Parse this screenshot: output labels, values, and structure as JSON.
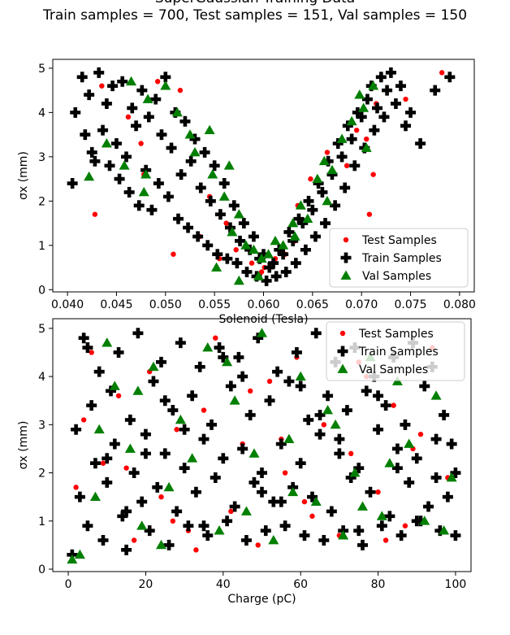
{
  "figure": {
    "title_line1": "SuperGaussian Training Data",
    "title_line2": "Train samples = 700, Test samples = 151, Val samples = 150"
  },
  "legend_entries": [
    "Test Samples",
    "Train Samples",
    "Val Samples"
  ],
  "colors": {
    "test": "#ff0000",
    "train": "#000000",
    "val": "#007f00"
  },
  "chart_data": [
    {
      "type": "scatter",
      "xlabel": "Solenoid (Tesla)",
      "ylabel": "σx (mm)",
      "xlim": [
        0.0385,
        0.0815
      ],
      "ylim": [
        -0.05,
        5.2
      ],
      "xticks": [
        0.04,
        0.045,
        0.05,
        0.055,
        0.06,
        0.065,
        0.07,
        0.075,
        0.08
      ],
      "xtick_labels": [
        "0.040",
        "0.045",
        "0.050",
        "0.055",
        "0.060",
        "0.065",
        "0.070",
        "0.075",
        "0.080"
      ],
      "yticks": [
        0,
        1,
        2,
        3,
        4,
        5
      ],
      "ytick_labels": [
        "0",
        "1",
        "2",
        "3",
        "4",
        "5"
      ],
      "legend": "lower-right",
      "grid": false,
      "series": [
        {
          "name": "Test Samples",
          "marker": "circle",
          "color": "#ff0000",
          "x": [
            0.0428,
            0.0435,
            0.0462,
            0.0478,
            0.0508,
            0.0475,
            0.0535,
            0.0545,
            0.0555,
            0.0572,
            0.0588,
            0.0601,
            0.0612,
            0.0622,
            0.0635,
            0.0648,
            0.0665,
            0.0685,
            0.0695,
            0.0708,
            0.0712,
            0.0715,
            0.0745,
            0.0782,
            0.0705,
            0.0492,
            0.0515,
            0.0562,
            0.0598,
            0.0632
          ],
          "y": [
            1.7,
            4.6,
            3.9,
            2.6,
            0.8,
            3.3,
            1.2,
            2.1,
            0.7,
            0.9,
            0.6,
            0.5,
            0.7,
            0.8,
            1.9,
            2.5,
            3.1,
            2.8,
            3.6,
            1.7,
            2.6,
            4.2,
            4.3,
            4.9,
            3.4,
            4.7,
            4.5,
            1.5,
            0.4,
            1.1
          ]
        },
        {
          "name": "Train Samples",
          "marker": "plus",
          "color": "#000000",
          "x": [
            0.0405,
            0.0408,
            0.0415,
            0.0418,
            0.0422,
            0.0425,
            0.0428,
            0.0432,
            0.0436,
            0.044,
            0.0443,
            0.0446,
            0.045,
            0.0453,
            0.0456,
            0.046,
            0.0463,
            0.0466,
            0.047,
            0.0473,
            0.0476,
            0.048,
            0.0483,
            0.0486,
            0.049,
            0.0493,
            0.0496,
            0.05,
            0.0503,
            0.0506,
            0.051,
            0.0513,
            0.0516,
            0.052,
            0.0523,
            0.0526,
            0.053,
            0.0533,
            0.0536,
            0.054,
            0.0543,
            0.0546,
            0.055,
            0.0553,
            0.0556,
            0.056,
            0.0563,
            0.0566,
            0.057,
            0.0573,
            0.0576,
            0.058,
            0.0583,
            0.0586,
            0.059,
            0.0593,
            0.0596,
            0.06,
            0.0603,
            0.0606,
            0.061,
            0.0613,
            0.0616,
            0.062,
            0.0623,
            0.0626,
            0.063,
            0.0633,
            0.0636,
            0.064,
            0.0643,
            0.0646,
            0.065,
            0.0653,
            0.0656,
            0.066,
            0.0663,
            0.0666,
            0.067,
            0.0673,
            0.0676,
            0.068,
            0.0683,
            0.0686,
            0.069,
            0.0693,
            0.0696,
            0.07,
            0.0703,
            0.0706,
            0.071,
            0.0713,
            0.0716,
            0.072,
            0.0723,
            0.0726,
            0.073,
            0.0735,
            0.074,
            0.0745,
            0.075,
            0.076,
            0.079,
            0.0775
          ],
          "y": [
            2.4,
            4.0,
            4.8,
            3.5,
            4.4,
            3.1,
            2.9,
            4.9,
            3.6,
            4.2,
            2.8,
            4.6,
            3.3,
            2.5,
            4.7,
            3.0,
            2.2,
            4.1,
            3.7,
            1.9,
            4.5,
            2.7,
            3.9,
            1.8,
            4.3,
            2.4,
            3.5,
            4.8,
            2.1,
            3.2,
            4.0,
            1.6,
            2.6,
            3.8,
            1.4,
            2.9,
            3.4,
            1.2,
            2.3,
            3.1,
            1.0,
            2.0,
            2.8,
            0.8,
            1.7,
            2.4,
            0.7,
            1.4,
            1.9,
            0.6,
            1.1,
            1.5,
            0.4,
            0.9,
            1.2,
            0.3,
            0.7,
            0.8,
            0.2,
            0.5,
            0.6,
            0.3,
            0.9,
            0.8,
            0.4,
            1.3,
            1.1,
            0.6,
            1.6,
            1.5,
            0.9,
            2.0,
            1.8,
            1.2,
            2.4,
            2.2,
            1.5,
            2.9,
            2.6,
            1.9,
            3.3,
            3.0,
            2.3,
            3.7,
            3.4,
            2.8,
            4.0,
            3.9,
            3.2,
            4.3,
            4.6,
            3.6,
            4.1,
            4.8,
            3.9,
            4.5,
            4.9,
            4.2,
            4.6,
            3.7,
            4.0,
            3.3,
            4.8,
            4.5
          ]
        },
        {
          "name": "Val Samples",
          "marker": "triangle",
          "color": "#007f00",
          "x": [
            0.0422,
            0.044,
            0.0458,
            0.0465,
            0.0478,
            0.0482,
            0.05,
            0.0512,
            0.053,
            0.0545,
            0.0552,
            0.056,
            0.0568,
            0.0575,
            0.0582,
            0.059,
            0.0598,
            0.0605,
            0.0612,
            0.062,
            0.063,
            0.0638,
            0.0645,
            0.0655,
            0.0662,
            0.067,
            0.068,
            0.069,
            0.0698,
            0.0702,
            0.0705,
            0.0712,
            0.0548,
            0.0575,
            0.0595,
            0.0632,
            0.0665,
            0.048,
            0.0525,
            0.0565
          ],
          "y": [
            2.55,
            3.3,
            2.8,
            4.7,
            2.2,
            4.3,
            4.6,
            4.0,
            3.1,
            3.6,
            0.5,
            2.1,
            1.3,
            1.7,
            1.0,
            0.9,
            0.7,
            0.8,
            1.1,
            1.0,
            1.5,
            1.9,
            1.6,
            2.5,
            2.9,
            2.7,
            3.4,
            3.8,
            4.4,
            4.1,
            3.2,
            4.6,
            2.6,
            0.2,
            0.3,
            1.2,
            2.0,
            2.6,
            3.5,
            2.8
          ]
        }
      ]
    },
    {
      "type": "scatter",
      "xlabel": "Charge (pC)",
      "ylabel": "σx (mm)",
      "xlim": [
        -4,
        104
      ],
      "ylim": [
        -0.05,
        5.2
      ],
      "xticks": [
        0,
        20,
        40,
        60,
        80,
        100
      ],
      "xtick_labels": [
        "0",
        "20",
        "40",
        "60",
        "80",
        "100"
      ],
      "yticks": [
        0,
        1,
        2,
        3,
        4,
        5
      ],
      "ytick_labels": [
        "0",
        "1",
        "2",
        "3",
        "4",
        "5"
      ],
      "legend": "upper-right",
      "grid": false,
      "series": [
        {
          "name": "Test Samples",
          "marker": "circle",
          "color": "#ff0000",
          "x": [
            2,
            6,
            9,
            13,
            17,
            21,
            24,
            28,
            31,
            35,
            38,
            42,
            45,
            49,
            52,
            56,
            59,
            63,
            66,
            70,
            73,
            77,
            80,
            84,
            87,
            91,
            94,
            98,
            15,
            33,
            47,
            61,
            75,
            89,
            4,
            27,
            55,
            82
          ],
          "y": [
            1.7,
            4.5,
            2.2,
            3.6,
            0.6,
            4.1,
            1.5,
            2.9,
            0.8,
            3.3,
            4.8,
            1.2,
            2.6,
            0.5,
            3.9,
            2.0,
            4.4,
            1.1,
            3.0,
            0.7,
            2.4,
            4.0,
            1.6,
            3.4,
            0.9,
            2.8,
            4.6,
            1.9,
            2.1,
            0.4,
            3.7,
            1.4,
            4.3,
            2.5,
            3.1,
            1.0,
            2.7,
            0.6
          ]
        },
        {
          "name": "Train Samples",
          "marker": "plus",
          "color": "#000000",
          "x": [
            1,
            2,
            3,
            4,
            5,
            6,
            7,
            8,
            9,
            10,
            11,
            12,
            13,
            14,
            15,
            16,
            17,
            18,
            19,
            20,
            21,
            22,
            23,
            24,
            25,
            26,
            27,
            28,
            29,
            30,
            31,
            32,
            33,
            34,
            35,
            36,
            37,
            38,
            39,
            40,
            41,
            42,
            43,
            44,
            45,
            46,
            47,
            48,
            49,
            50,
            51,
            52,
            53,
            54,
            55,
            56,
            57,
            58,
            59,
            60,
            61,
            62,
            63,
            64,
            65,
            66,
            67,
            68,
            69,
            70,
            71,
            72,
            73,
            74,
            75,
            76,
            77,
            78,
            79,
            80,
            81,
            82,
            83,
            84,
            85,
            86,
            87,
            88,
            89,
            90,
            91,
            92,
            93,
            94,
            95,
            96,
            97,
            98,
            99,
            100,
            5,
            15,
            25,
            35,
            45,
            55,
            65,
            75,
            85,
            95,
            10,
            30,
            50,
            70,
            90,
            20,
            40,
            60,
            80,
            100
          ],
          "y": [
            0.3,
            2.9,
            1.5,
            4.8,
            0.9,
            3.4,
            2.2,
            4.1,
            0.6,
            1.8,
            3.7,
            2.6,
            4.5,
            1.1,
            0.4,
            3.1,
            2.0,
            4.9,
            1.4,
            2.8,
            0.8,
            3.9,
            1.7,
            4.3,
            2.4,
            0.5,
            3.3,
            1.2,
            4.7,
            2.1,
            0.9,
            3.6,
            1.6,
            4.2,
            2.7,
            0.7,
            3.0,
            1.9,
            4.6,
            2.3,
            1.0,
            3.8,
            1.3,
            4.4,
            2.5,
            0.6,
            3.2,
            1.8,
            4.8,
            2.0,
            0.8,
            3.5,
            1.4,
            4.1,
            2.6,
            0.9,
            3.9,
            1.7,
            4.5,
            2.2,
            0.7,
            3.1,
            1.5,
            4.9,
            2.8,
            0.6,
            3.6,
            1.2,
            4.3,
            2.4,
            0.8,
            3.3,
            1.9,
            4.6,
            2.1,
            0.5,
            3.7,
            1.6,
            4.0,
            2.9,
            0.9,
            3.4,
            1.1,
            4.4,
            2.5,
            0.7,
            3.0,
            1.8,
            4.7,
            2.3,
            1.0,
            3.8,
            1.3,
            4.2,
            2.7,
            0.8,
            3.2,
            1.5,
            2.6,
            0.7,
            4.6,
            1.2,
            3.5,
            0.9,
            4.0,
            1.4,
            3.2,
            0.8,
            2.1,
            1.9,
            2.3,
            2.9,
            1.6,
            2.7,
            1.0,
            2.4,
            4.4,
            3.8,
            3.6,
            2.0
          ]
        },
        {
          "name": "Val Samples",
          "marker": "triangle",
          "color": "#007f00",
          "x": [
            1,
            3,
            7,
            10,
            12,
            16,
            19,
            22,
            26,
            29,
            32,
            36,
            39,
            43,
            46,
            50,
            53,
            57,
            60,
            64,
            67,
            71,
            74,
            78,
            81,
            85,
            88,
            92,
            95,
            99,
            8,
            24,
            41,
            58,
            69,
            83,
            97,
            18,
            48,
            76
          ],
          "y": [
            0.2,
            0.3,
            1.5,
            4.7,
            3.8,
            2.5,
            0.9,
            4.2,
            1.7,
            3.1,
            2.3,
            4.6,
            0.8,
            3.5,
            1.2,
            4.9,
            0.6,
            2.7,
            4.0,
            1.4,
            3.3,
            0.7,
            2.0,
            4.4,
            1.1,
            3.9,
            2.6,
            1.0,
            3.6,
            1.9,
            2.9,
            0.5,
            4.3,
            1.6,
            3.0,
            2.2,
            0.8,
            3.7,
            2.4,
            1.3
          ]
        }
      ]
    }
  ]
}
